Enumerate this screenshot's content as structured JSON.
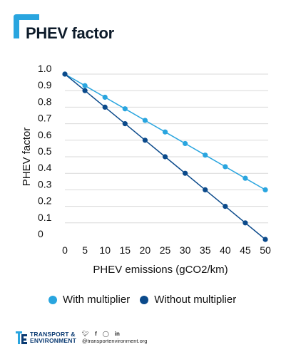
{
  "header": {
    "title": "PHEV factor"
  },
  "colors": {
    "accent": "#29a5df",
    "with_multiplier": "#29a5df",
    "without_multiplier": "#0b4a8b",
    "grid": "#d9d9d9"
  },
  "chart_data": {
    "type": "line",
    "title": "",
    "xlabel": "PHEV emissions (gCO2/km)",
    "ylabel": "PHEV factor",
    "x": [
      0,
      5,
      10,
      15,
      20,
      25,
      30,
      35,
      40,
      45,
      50
    ],
    "x_tick_labels": [
      "0",
      "5",
      "10",
      "15",
      "20",
      "25",
      "30",
      "35",
      "40",
      "45",
      "50"
    ],
    "y_tick_labels": [
      "1.0",
      "0.9",
      "0.8",
      "0.7",
      "0.6",
      "0.5",
      "0.4",
      "0.3",
      "0.2",
      "0.1",
      "0"
    ],
    "y_ticks": [
      1.0,
      0.9,
      0.8,
      0.7,
      0.6,
      0.5,
      0.4,
      0.3,
      0.2,
      0.1,
      0
    ],
    "xlim": [
      0,
      50
    ],
    "ylim": [
      0,
      1.0
    ],
    "grid": true,
    "legend_position": "bottom",
    "series": [
      {
        "name": "With multiplier",
        "values": [
          1.0,
          0.93,
          0.86,
          0.79,
          0.72,
          0.65,
          0.58,
          0.51,
          0.44,
          0.37,
          0.3
        ]
      },
      {
        "name": "Without multiplier",
        "values": [
          1.0,
          0.9,
          0.8,
          0.7,
          0.6,
          0.5,
          0.4,
          0.3,
          0.2,
          0.1,
          0.0
        ]
      }
    ]
  },
  "legend": {
    "items": [
      "With multiplier",
      "Without multiplier"
    ]
  },
  "footer": {
    "logo_line1": "TRANSPORT &",
    "logo_line2": "ENVIRONMENT",
    "logo_icon": "te-logo-icon",
    "social_icons": [
      "twitter-icon",
      "facebook-icon",
      "instagram-icon",
      "linkedin-icon"
    ],
    "handle": "@transportenvironment.org"
  }
}
